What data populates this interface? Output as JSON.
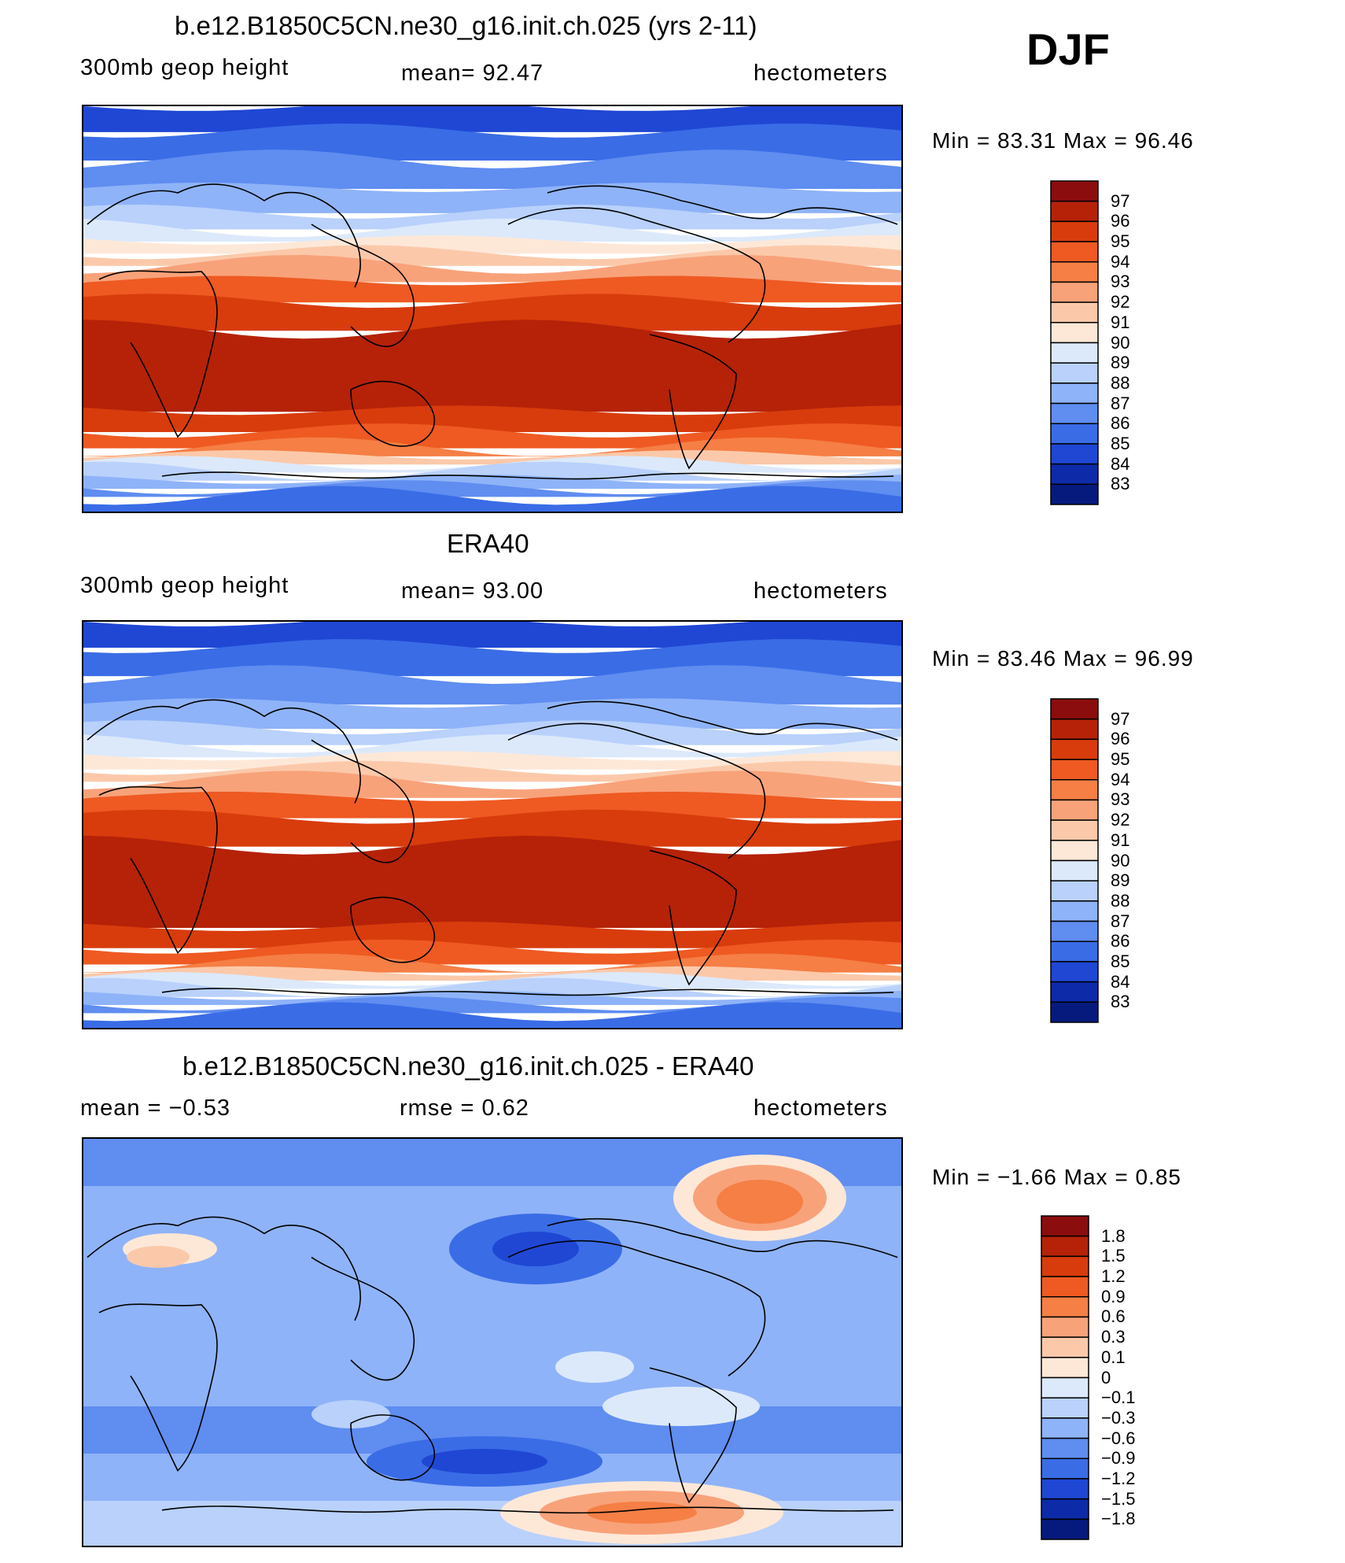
{
  "djf_label": "DJF",
  "panels": [
    {
      "title": "b.e12.B1850C5CN.ne30_g16.init.ch.025 (yrs 2-11)",
      "left": "300mb  geop  height",
      "center": "mean=   92.47",
      "right": "hectometers",
      "minmax": "Min  =    83.31  Max  =    96.46",
      "kind": "model"
    },
    {
      "title": "ERA40",
      "left": "300mb  geop  height",
      "center": "mean=   93.00",
      "right": "hectometers",
      "minmax": "Min  =    83.46  Max  =    96.99",
      "kind": "obs"
    },
    {
      "title": "b.e12.B1850C5CN.ne30_g16.init.ch.025 - ERA40",
      "left": "mean  =   −0.53",
      "center": "rmse  =    0.62",
      "right": "hectometers",
      "minmax": "Min  =   −1.66  Max  =     0.85",
      "kind": "diff"
    }
  ],
  "legend_abs": {
    "labels": [
      "97",
      "96",
      "95",
      "94",
      "93",
      "92",
      "91",
      "90",
      "89",
      "88",
      "87",
      "86",
      "85",
      "84",
      "83"
    ],
    "colors": [
      "#8c0d0d",
      "#b52208",
      "#d83c0c",
      "#ee5a22",
      "#f57f45",
      "#f8a27a",
      "#fbc9aa",
      "#fde8d8",
      "#dce9fb",
      "#b9d1fb",
      "#8fb3f8",
      "#5f8df0",
      "#3a6ce6",
      "#1f47d4",
      "#0d2aa8",
      "#061a7e"
    ]
  },
  "legend_diff": {
    "labels": [
      "1.8",
      "1.5",
      "1.2",
      "0.9",
      "0.6",
      "0.3",
      "0.1",
      "0",
      "−0.1",
      "−0.3",
      "−0.6",
      "−0.9",
      "−1.2",
      "−1.5",
      "−1.8"
    ],
    "colors": [
      "#8c0d0d",
      "#b52208",
      "#d83c0c",
      "#ee5a22",
      "#f57f45",
      "#f8a27a",
      "#fbc9aa",
      "#fde8d8",
      "#dce9fb",
      "#b9d1fb",
      "#8fb3f8",
      "#5f8df0",
      "#3a6ce6",
      "#1f47d4",
      "#0d2aa8",
      "#061a7e"
    ]
  }
}
